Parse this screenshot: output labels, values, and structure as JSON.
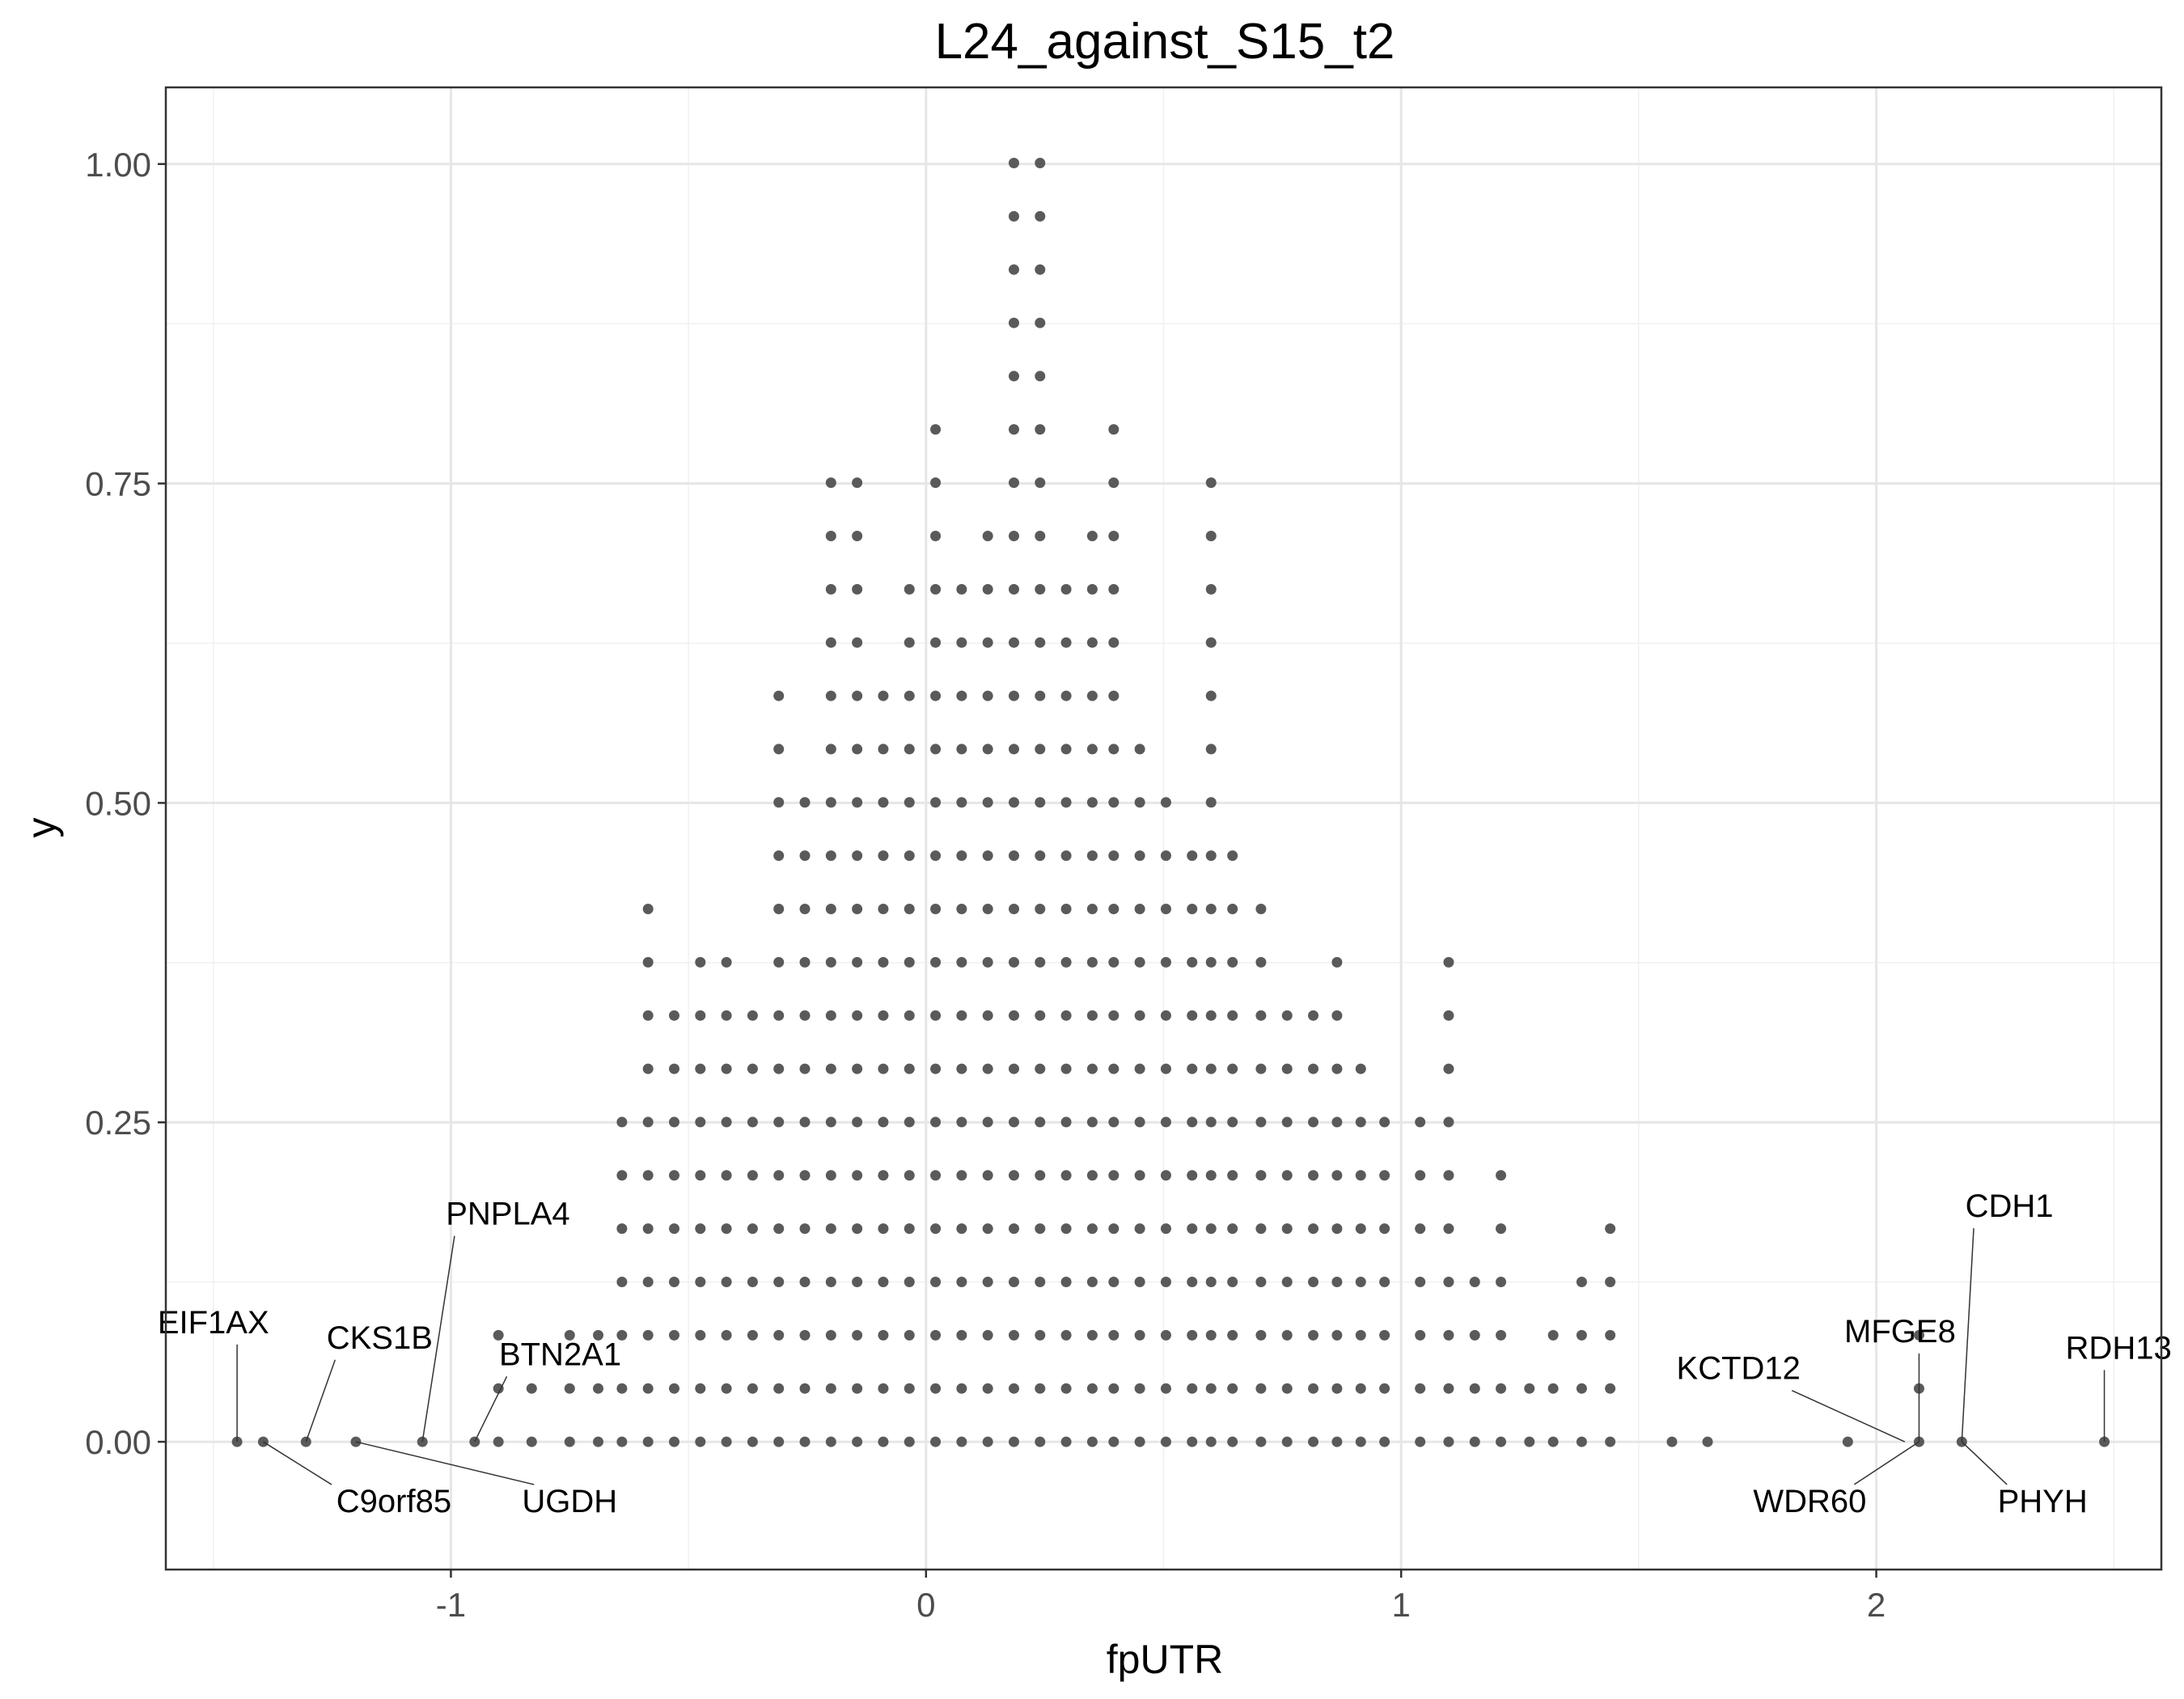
{
  "chart_data": {
    "type": "scatter",
    "title": "L24_against_S15_t2",
    "xlabel": "fpUTR",
    "ylabel": "y",
    "xlim": [
      -1.6,
      2.6
    ],
    "ylim": [
      -0.1,
      1.06
    ],
    "x_ticks": [
      -1,
      0,
      1,
      2
    ],
    "x_tick_labels": [
      "-1",
      "0",
      "1",
      "2"
    ],
    "y_ticks": [
      0,
      0.25,
      0.5,
      0.75,
      1.0
    ],
    "y_tick_labels": [
      "0.00",
      "0.25",
      "0.50",
      "0.75",
      "1.00"
    ],
    "grid": true,
    "legend": "none",
    "point_color": "#5a5a5a",
    "dot_step_y": 0.0417,
    "columns": [
      {
        "x": -1.45,
        "n": 1
      },
      {
        "x": -1.395,
        "n": 1
      },
      {
        "x": -1.305,
        "n": 1
      },
      {
        "x": -1.2,
        "n": 1
      },
      {
        "x": -1.06,
        "n": 1
      },
      {
        "x": -0.95,
        "n": 1
      },
      {
        "x": -0.9,
        "n": 3
      },
      {
        "x": -0.83,
        "n": 2
      },
      {
        "x": -0.75,
        "n": 3
      },
      {
        "x": -0.69,
        "n": 3
      },
      {
        "x": -0.64,
        "n": 7
      },
      {
        "x": -0.585,
        "n": 11
      },
      {
        "x": -0.53,
        "n": 9
      },
      {
        "x": -0.475,
        "n": 10
      },
      {
        "x": -0.42,
        "n": 10
      },
      {
        "x": -0.365,
        "n": 9
      },
      {
        "x": -0.31,
        "n": 15
      },
      {
        "x": -0.255,
        "n": 13
      },
      {
        "x": -0.2,
        "n": 19
      },
      {
        "x": -0.145,
        "n": 19
      },
      {
        "x": -0.09,
        "n": 15
      },
      {
        "x": -0.035,
        "n": 17
      },
      {
        "x": 0.02,
        "n": 20
      },
      {
        "x": 0.075,
        "n": 17
      },
      {
        "x": 0.13,
        "n": 18
      },
      {
        "x": 0.185,
        "n": 25
      },
      {
        "x": 0.24,
        "n": 25
      },
      {
        "x": 0.295,
        "n": 17
      },
      {
        "x": 0.35,
        "n": 18
      },
      {
        "x": 0.395,
        "n": 20
      },
      {
        "x": 0.45,
        "n": 14
      },
      {
        "x": 0.505,
        "n": 13
      },
      {
        "x": 0.56,
        "n": 12
      },
      {
        "x": 0.6,
        "n": 19
      },
      {
        "x": 0.645,
        "n": 12
      },
      {
        "x": 0.705,
        "n": 11
      },
      {
        "x": 0.76,
        "n": 9
      },
      {
        "x": 0.815,
        "n": 9
      },
      {
        "x": 0.865,
        "n": 10
      },
      {
        "x": 0.915,
        "n": 8
      },
      {
        "x": 0.965,
        "n": 7
      },
      {
        "x": 1.04,
        "n": 7
      },
      {
        "x": 1.1,
        "n": 10
      },
      {
        "x": 1.155,
        "n": 4
      },
      {
        "x": 1.21,
        "n": 6
      },
      {
        "x": 1.27,
        "n": 2
      },
      {
        "x": 1.32,
        "n": 3
      },
      {
        "x": 1.38,
        "n": 4
      },
      {
        "x": 1.44,
        "n": 5
      },
      {
        "x": 1.57,
        "n": 1
      },
      {
        "x": 1.645,
        "n": 1
      },
      {
        "x": 1.94,
        "n": 1
      },
      {
        "x": 2.09,
        "n": 3
      },
      {
        "x": 2.18,
        "n": 1
      },
      {
        "x": 2.48,
        "n": 1
      }
    ],
    "annotations": [
      {
        "label": "EIF1AX",
        "x": -1.45,
        "y": 0,
        "label_x": -1.5,
        "label_y": 0.085,
        "anchor": "middle"
      },
      {
        "label": "C9orf85",
        "x": -1.395,
        "y": 0,
        "label_x": -1.12,
        "label_y": -0.055,
        "anchor": "middle"
      },
      {
        "label": "CKS1B",
        "x": -1.305,
        "y": 0,
        "label_x": -1.15,
        "label_y": 0.073,
        "anchor": "middle"
      },
      {
        "label": "UGDH",
        "x": -1.2,
        "y": 0,
        "label_x": -0.75,
        "label_y": -0.055,
        "anchor": "middle"
      },
      {
        "label": "PNPLA4",
        "x": -1.06,
        "y": 0,
        "label_x": -0.88,
        "label_y": 0.17,
        "anchor": "middle"
      },
      {
        "label": "BTN2A1",
        "x": -0.95,
        "y": 0,
        "label_x": -0.77,
        "label_y": 0.06,
        "anchor": "middle"
      },
      {
        "label": "KCTD12",
        "x": 2.06,
        "y": 0,
        "label_x": 1.71,
        "label_y": 0.049,
        "anchor": "middle"
      },
      {
        "label": "WDR60",
        "x": 2.09,
        "y": 0,
        "label_x": 1.86,
        "label_y": -0.055,
        "anchor": "middle"
      },
      {
        "label": "MFGE8",
        "x": 2.09,
        "y": 0,
        "label_x": 2.05,
        "label_y": 0.078,
        "anchor": "middle"
      },
      {
        "label": "CDH1",
        "x": 2.18,
        "y": 0,
        "label_x": 2.28,
        "label_y": 0.176,
        "anchor": "middle"
      },
      {
        "label": "PHYH",
        "x": 2.18,
        "y": 0,
        "label_x": 2.35,
        "label_y": -0.055,
        "anchor": "middle"
      },
      {
        "label": "RDH13",
        "x": 2.48,
        "y": 0,
        "label_x": 2.51,
        "label_y": 0.065,
        "anchor": "middle"
      }
    ]
  }
}
